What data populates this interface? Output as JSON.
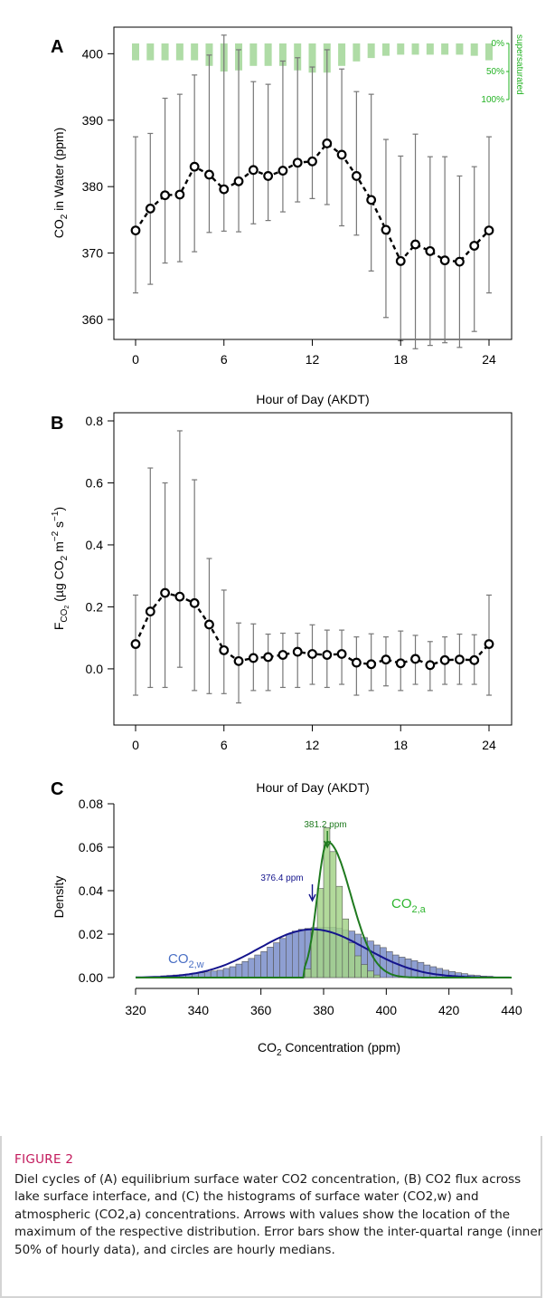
{
  "chart_data": [
    {
      "type": "line",
      "panel_label": "A",
      "xlabel": "Hour of Day (AKDT)",
      "ylabel": "CO2 in Water (ppm)",
      "ylabel_parts": {
        "pre": "CO",
        "sub": "2",
        "post": " in Water (ppm)"
      },
      "xlim": [
        0,
        24
      ],
      "ylim": [
        357,
        404
      ],
      "xticks": [
        0,
        6,
        12,
        18,
        24
      ],
      "yticks": [
        360,
        370,
        380,
        390,
        400
      ],
      "x": [
        0,
        1,
        2,
        3,
        4,
        5,
        6,
        7,
        8,
        9,
        10,
        11,
        12,
        13,
        14,
        15,
        16,
        17,
        18,
        19,
        20,
        21,
        22,
        23,
        24
      ],
      "median": [
        373.4,
        376.7,
        378.7,
        378.8,
        383.0,
        381.8,
        379.6,
        380.8,
        382.5,
        381.6,
        382.4,
        383.6,
        383.8,
        386.5,
        384.8,
        381.6,
        378.0,
        373.5,
        368.8,
        371.3,
        370.3,
        368.9,
        368.7,
        371.1,
        373.4
      ],
      "q_low": [
        364.0,
        365.3,
        368.5,
        368.7,
        370.2,
        373.1,
        373.3,
        373.2,
        374.4,
        374.9,
        376.2,
        377.7,
        378.2,
        377.3,
        374.1,
        372.7,
        367.3,
        360.3,
        356.8,
        355.6,
        356.1,
        356.5,
        355.8,
        358.2,
        364.0
      ],
      "q_high": [
        387.5,
        388.0,
        393.3,
        393.9,
        396.8,
        399.8,
        402.8,
        400.6,
        395.8,
        395.4,
        398.9,
        399.4,
        398.0,
        400.6,
        397.7,
        394.3,
        393.9,
        387.1,
        384.6,
        387.9,
        384.5,
        384.5,
        381.6,
        383.0,
        387.5
      ],
      "supersaturation": {
        "label": "supersaturated",
        "scale_ticks": [
          "0%",
          "50%",
          "100%"
        ],
        "fraction": [
          0.3,
          0.3,
          0.3,
          0.3,
          0.3,
          0.4,
          0.5,
          0.48,
          0.4,
          0.4,
          0.4,
          0.48,
          0.52,
          0.52,
          0.4,
          0.32,
          0.26,
          0.22,
          0.2,
          0.2,
          0.2,
          0.2,
          0.2,
          0.22,
          0.3
        ]
      }
    },
    {
      "type": "line",
      "panel_label": "B",
      "xlabel": "Hour of Day (AKDT)",
      "ylabel": "FCO2 (µg CO2 m−2 s−1)",
      "ylabel_parts": {
        "f": "F",
        "fsub": "CO",
        "fsubsub": "2",
        "mid": " (µg CO",
        "sub2": "2",
        "m": " m",
        "exp1": "−2",
        "s": " s",
        "exp2": "−1",
        "end": ")"
      },
      "xlim": [
        0,
        24
      ],
      "ylim": [
        -0.12,
        0.8
      ],
      "xticks": [
        0,
        6,
        12,
        18,
        24
      ],
      "yticks": [
        0.0,
        0.2,
        0.4,
        0.6,
        0.8
      ],
      "x": [
        0,
        1,
        2,
        3,
        4,
        5,
        6,
        7,
        8,
        9,
        10,
        11,
        12,
        13,
        14,
        15,
        16,
        17,
        18,
        19,
        20,
        21,
        22,
        23,
        24
      ],
      "median": [
        0.08,
        0.185,
        0.245,
        0.233,
        0.212,
        0.143,
        0.06,
        0.025,
        0.035,
        0.038,
        0.045,
        0.055,
        0.048,
        0.045,
        0.048,
        0.02,
        0.015,
        0.03,
        0.018,
        0.032,
        0.012,
        0.028,
        0.03,
        0.028,
        0.08
      ],
      "q_low": [
        -0.085,
        -0.06,
        -0.06,
        0.005,
        -0.07,
        -0.08,
        -0.08,
        -0.11,
        -0.07,
        -0.07,
        -0.06,
        -0.06,
        -0.05,
        -0.06,
        -0.05,
        -0.085,
        -0.07,
        -0.055,
        -0.07,
        -0.05,
        -0.07,
        -0.05,
        -0.05,
        -0.05,
        -0.085
      ],
      "q_high": [
        0.238,
        0.648,
        0.6,
        0.768,
        0.61,
        0.356,
        0.254,
        0.148,
        0.145,
        0.112,
        0.115,
        0.115,
        0.142,
        0.125,
        0.125,
        0.103,
        0.113,
        0.103,
        0.122,
        0.108,
        0.088,
        0.103,
        0.112,
        0.11,
        0.238
      ]
    },
    {
      "type": "histogram",
      "panel_label": "C",
      "xlabel": "CO2 Concentration (ppm)",
      "xlabel_parts": {
        "pre": "CO",
        "sub": "2",
        "post": " Concentration (ppm)"
      },
      "ylabel": "Density",
      "xtitle_top": "Hour of Day (AKDT)",
      "xlim": [
        320,
        440
      ],
      "ylim": [
        0,
        0.08
      ],
      "xticks": [
        320,
        340,
        360,
        380,
        400,
        420,
        440
      ],
      "yticks": [
        "0.00",
        "0.02",
        "0.04",
        "0.06",
        "0.08"
      ],
      "bin_width": 2,
      "bin_start": 328,
      "water": {
        "name_parts": {
          "pre": "CO",
          "sub": "2,w"
        },
        "density": [
          0.0008,
          0.001,
          0.0012,
          0.0014,
          0.0016,
          0.0019,
          0.0022,
          0.0026,
          0.003,
          0.0034,
          0.0042,
          0.005,
          0.0062,
          0.0074,
          0.0088,
          0.0104,
          0.012,
          0.014,
          0.016,
          0.018,
          0.02,
          0.0214,
          0.0222,
          0.0226,
          0.023,
          0.0232,
          0.0232,
          0.0232,
          0.0228,
          0.022,
          0.0214,
          0.02,
          0.0184,
          0.0168,
          0.015,
          0.0138,
          0.012,
          0.0104,
          0.0094,
          0.0086,
          0.0078,
          0.007,
          0.0058,
          0.005,
          0.0042,
          0.0034,
          0.0028,
          0.0022,
          0.0018,
          0.0012,
          0.001,
          0.0007,
          0.0006
        ],
        "peak_label": "376.4 ppm",
        "peak_x": 376.4
      },
      "air": {
        "name_parts": {
          "pre": "CO",
          "sub": "2,a"
        },
        "bin_start": 374,
        "density": [
          0.004,
          0.022,
          0.041,
          0.069,
          0.058,
          0.042,
          0.027,
          0.016,
          0.01,
          0.006,
          0.003,
          0.0012
        ],
        "peak_label": "381.2 ppm",
        "peak_x": 381.2
      },
      "colors": {
        "water": "#8e9fd2",
        "air": "#a4d38a",
        "water_line": "#14148c",
        "air_line": "#1f7a1f",
        "air_text": "#2fb52f",
        "water_text": "#4a6fc4"
      }
    }
  ],
  "caption": {
    "title": "FIGURE 2",
    "text": "Diel cycles of (A) equilibrium surface water CO2 concentration, (B) CO2 flux across lake surface interface, and (C) the histograms of surface water (CO2,w) and atmospheric (CO2,a) concentrations. Arrows with values show the location of the maximum of the respective distribution. Error bars show the inter-quartal range (inner 50% of hourly data), and circles are hourly medians."
  }
}
